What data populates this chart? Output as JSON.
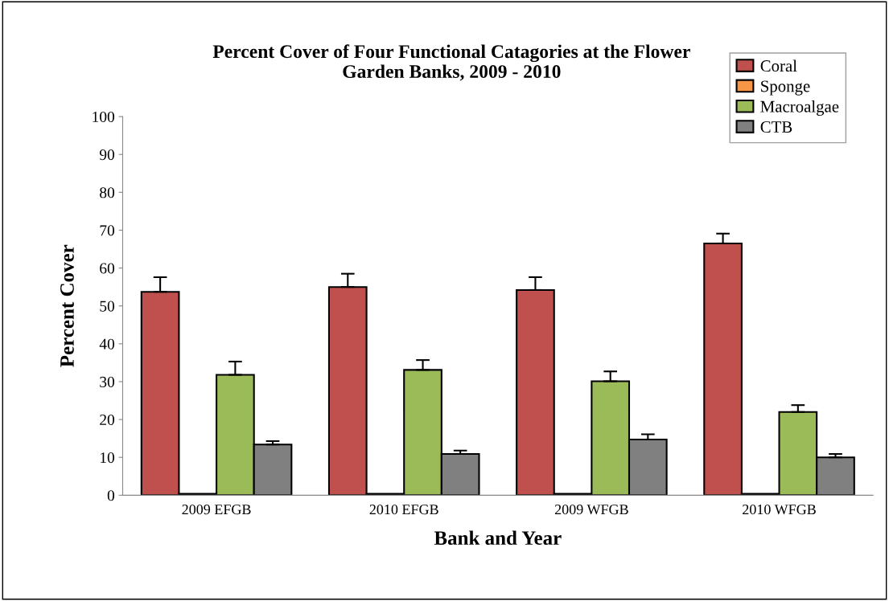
{
  "chart_data": {
    "type": "bar",
    "title": "Percent Cover of Four Functional Catagories at the Flower\nGarden Banks, 2009 - 2010",
    "xlabel": "Bank and Year",
    "ylabel": "Percent Cover",
    "categories": [
      "2009 EFGB",
      "2010 EFGB",
      "2009 WFGB",
      "2010 WFGB"
    ],
    "series": [
      {
        "name": "Coral",
        "color": "#c0504d",
        "values": [
          53.7,
          55.0,
          54.2,
          66.5
        ],
        "errors": [
          [
            53.7,
            57.6
          ],
          [
            55.0,
            58.5
          ],
          [
            54.2,
            57.6
          ],
          [
            66.5,
            69.1
          ]
        ]
      },
      {
        "name": "Sponge",
        "color": "#f79646",
        "values": [
          0.4,
          0.4,
          0.4,
          0.4
        ]
      },
      {
        "name": "Macroalgae",
        "color": "#9bbb59",
        "values": [
          31.8,
          33.1,
          30.1,
          22.0
        ],
        "errors": [
          [
            31.8,
            35.3
          ],
          [
            33.1,
            35.7
          ],
          [
            30.1,
            32.7
          ],
          [
            22.0,
            23.8
          ]
        ]
      },
      {
        "name": "CTB",
        "color": "#808080",
        "values": [
          13.4,
          10.9,
          14.7,
          10.0
        ],
        "errors": [
          [
            13.4,
            14.3
          ],
          [
            10.9,
            11.8
          ],
          [
            14.7,
            16.1
          ],
          [
            10.0,
            10.9
          ]
        ]
      }
    ],
    "ylim": [
      0,
      100
    ],
    "yticks": [
      0,
      10,
      20,
      30,
      40,
      50,
      60,
      70,
      80,
      90,
      100
    ],
    "legend": "top right"
  }
}
